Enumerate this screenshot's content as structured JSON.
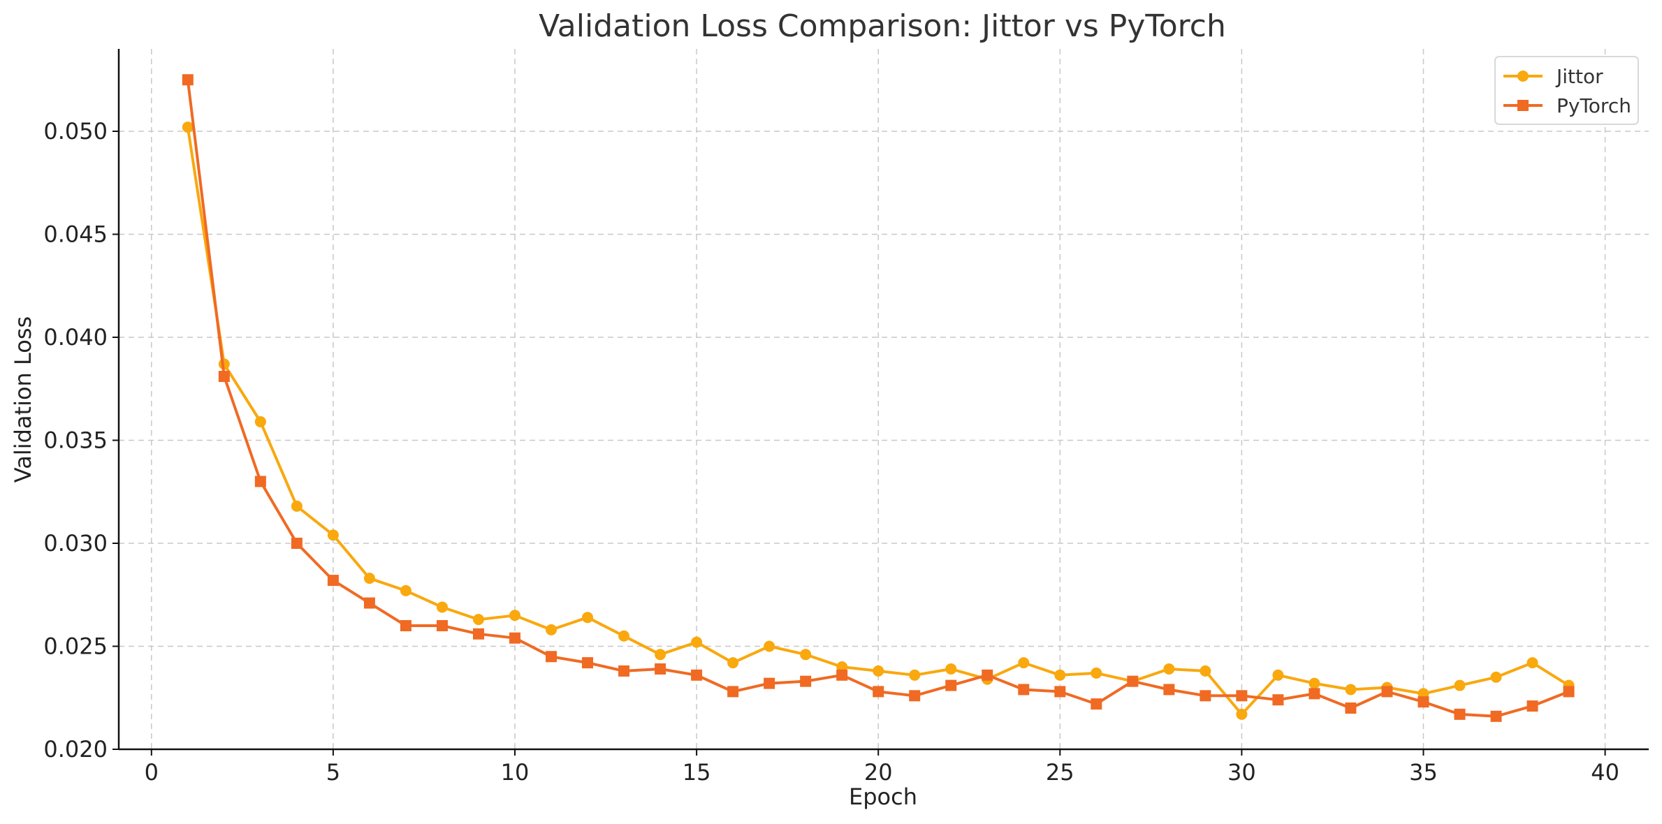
{
  "chart_data": {
    "type": "line",
    "title": "Validation Loss Comparison: Jittor vs PyTorch",
    "xlabel": "Epoch",
    "ylabel": "Validation Loss",
    "xlim": [
      -0.9,
      41.2
    ],
    "ylim": [
      0.02,
      0.054
    ],
    "xticks": [
      0,
      5,
      10,
      15,
      20,
      25,
      30,
      35,
      40
    ],
    "yticks": [
      0.02,
      0.025,
      0.03,
      0.035,
      0.04,
      0.045,
      0.05
    ],
    "ytick_labels": [
      "0.020",
      "0.025",
      "0.030",
      "0.035",
      "0.040",
      "0.045",
      "0.050"
    ],
    "grid": true,
    "legend_position": "top-right",
    "x": [
      1,
      2,
      3,
      4,
      5,
      6,
      7,
      8,
      9,
      10,
      11,
      12,
      13,
      14,
      15,
      16,
      17,
      18,
      19,
      20,
      21,
      22,
      23,
      24,
      25,
      26,
      27,
      28,
      29,
      30,
      31,
      32,
      33,
      34,
      35,
      36,
      37,
      38,
      39
    ],
    "series": [
      {
        "name": "Jittor",
        "color": "#F9A80E",
        "marker": "circle",
        "values": [
          0.0502,
          0.0387,
          0.0359,
          0.0318,
          0.0304,
          0.0283,
          0.0277,
          0.0269,
          0.0263,
          0.0265,
          0.0258,
          0.0264,
          0.0255,
          0.0246,
          0.0252,
          0.0242,
          0.025,
          0.0246,
          0.024,
          0.0238,
          0.0236,
          0.0239,
          0.0234,
          0.0242,
          0.0236,
          0.0237,
          0.0233,
          0.0239,
          0.0238,
          0.0217,
          0.0236,
          0.0232,
          0.0229,
          0.023,
          0.0227,
          0.0231,
          0.0235,
          0.0242,
          0.0231
        ]
      },
      {
        "name": "PyTorch",
        "color": "#F06A23",
        "marker": "square",
        "values": [
          0.0525,
          0.0381,
          0.033,
          0.03,
          0.0282,
          0.0271,
          0.026,
          0.026,
          0.0256,
          0.0254,
          0.0245,
          0.0242,
          0.0238,
          0.0239,
          0.0236,
          0.0228,
          0.0232,
          0.0233,
          0.0236,
          0.0228,
          0.0226,
          0.0231,
          0.0236,
          0.0229,
          0.0228,
          0.0222,
          0.0233,
          0.0229,
          0.0226,
          0.0226,
          0.0224,
          0.0227,
          0.022,
          0.0228,
          0.0223,
          0.0217,
          0.0216,
          0.0221,
          0.0228
        ]
      }
    ]
  }
}
